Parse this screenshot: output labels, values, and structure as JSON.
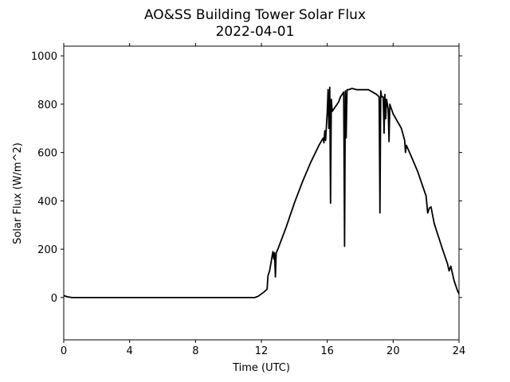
{
  "chart_data": {
    "type": "line",
    "title": "AO&SS Building Tower Solar Flux",
    "subtitle": "2022-04-01",
    "xlabel": "Time (UTC)",
    "ylabel": "Solar Flux (W/m^2)",
    "xlim": [
      0,
      24
    ],
    "ylim": [
      -175,
      1040
    ],
    "xticks": [
      0,
      4,
      8,
      12,
      16,
      20,
      24
    ],
    "yticks": [
      0,
      200,
      400,
      600,
      800,
      1000
    ],
    "grid": false,
    "series": [
      {
        "color": "#000000",
        "x": [
          0,
          0.2,
          0.5,
          1,
          2,
          4,
          6,
          8,
          10,
          11,
          11.6,
          11.8,
          12.0,
          12.2,
          12.35,
          12.4,
          12.5,
          12.6,
          12.65,
          12.7,
          12.75,
          12.8,
          12.85,
          12.9,
          13.0,
          13.5,
          14.0,
          14.5,
          15.0,
          15.5,
          15.75,
          15.8,
          15.85,
          15.9,
          16.0,
          16.05,
          16.1,
          16.15,
          16.2,
          16.25,
          16.3,
          16.4,
          16.5,
          16.6,
          16.7,
          16.8,
          16.9,
          17.0,
          17.05,
          17.1,
          17.15,
          17.2,
          17.3,
          17.5,
          17.8,
          18.0,
          18.5,
          19.0,
          19.15,
          19.2,
          19.25,
          19.3,
          19.4,
          19.45,
          19.5,
          19.55,
          19.6,
          19.7,
          19.75,
          19.8,
          20.0,
          20.5,
          20.7,
          20.75,
          20.8,
          21.0,
          21.5,
          21.8,
          22.0,
          22.1,
          22.2,
          22.3,
          22.4,
          22.5,
          23.0,
          23.3,
          23.4,
          23.5,
          23.7,
          23.9,
          24.0
        ],
        "y": [
          8,
          3,
          0,
          0,
          0,
          0,
          0,
          0,
          0,
          0,
          0,
          5,
          15,
          25,
          35,
          90,
          110,
          150,
          170,
          190,
          160,
          185,
          85,
          185,
          200,
          290,
          390,
          480,
          560,
          630,
          660,
          640,
          690,
          650,
          770,
          860,
          700,
          870,
          390,
          820,
          770,
          780,
          790,
          800,
          810,
          830,
          840,
          850,
          212,
          855,
          660,
          860,
          860,
          865,
          860,
          860,
          860,
          840,
          830,
          350,
          855,
          830,
          830,
          680,
          840,
          740,
          820,
          780,
          645,
          800,
          760,
          700,
          650,
          600,
          630,
          600,
          520,
          460,
          420,
          350,
          370,
          375,
          340,
          305,
          200,
          140,
          110,
          130,
          70,
          30,
          15
        ]
      }
    ]
  }
}
